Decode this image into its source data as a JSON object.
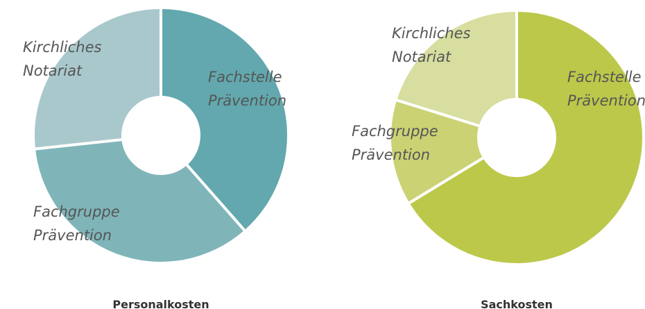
{
  "chart_data": [
    {
      "type": "donut",
      "title": "Personalkosten",
      "categories": [
        "Fachstelle Prävention",
        "Fachgruppe Prävention",
        "Kirchliches Notariat"
      ],
      "values": [
        38.5,
        34.8,
        26.7
      ],
      "colors": [
        "#62a8ae",
        "#7fb5b9",
        "#a9c8cc"
      ]
    },
    {
      "type": "donut",
      "title": "Sachkosten",
      "categories": [
        "Fachstelle Prävention",
        "Fachgruppe Prävention",
        "Kirchliches Notariat"
      ],
      "values": [
        66.3,
        13.5,
        20.2
      ],
      "colors": [
        "#bcc84a",
        "#cbd274",
        "#d7de9f"
      ]
    }
  ]
}
